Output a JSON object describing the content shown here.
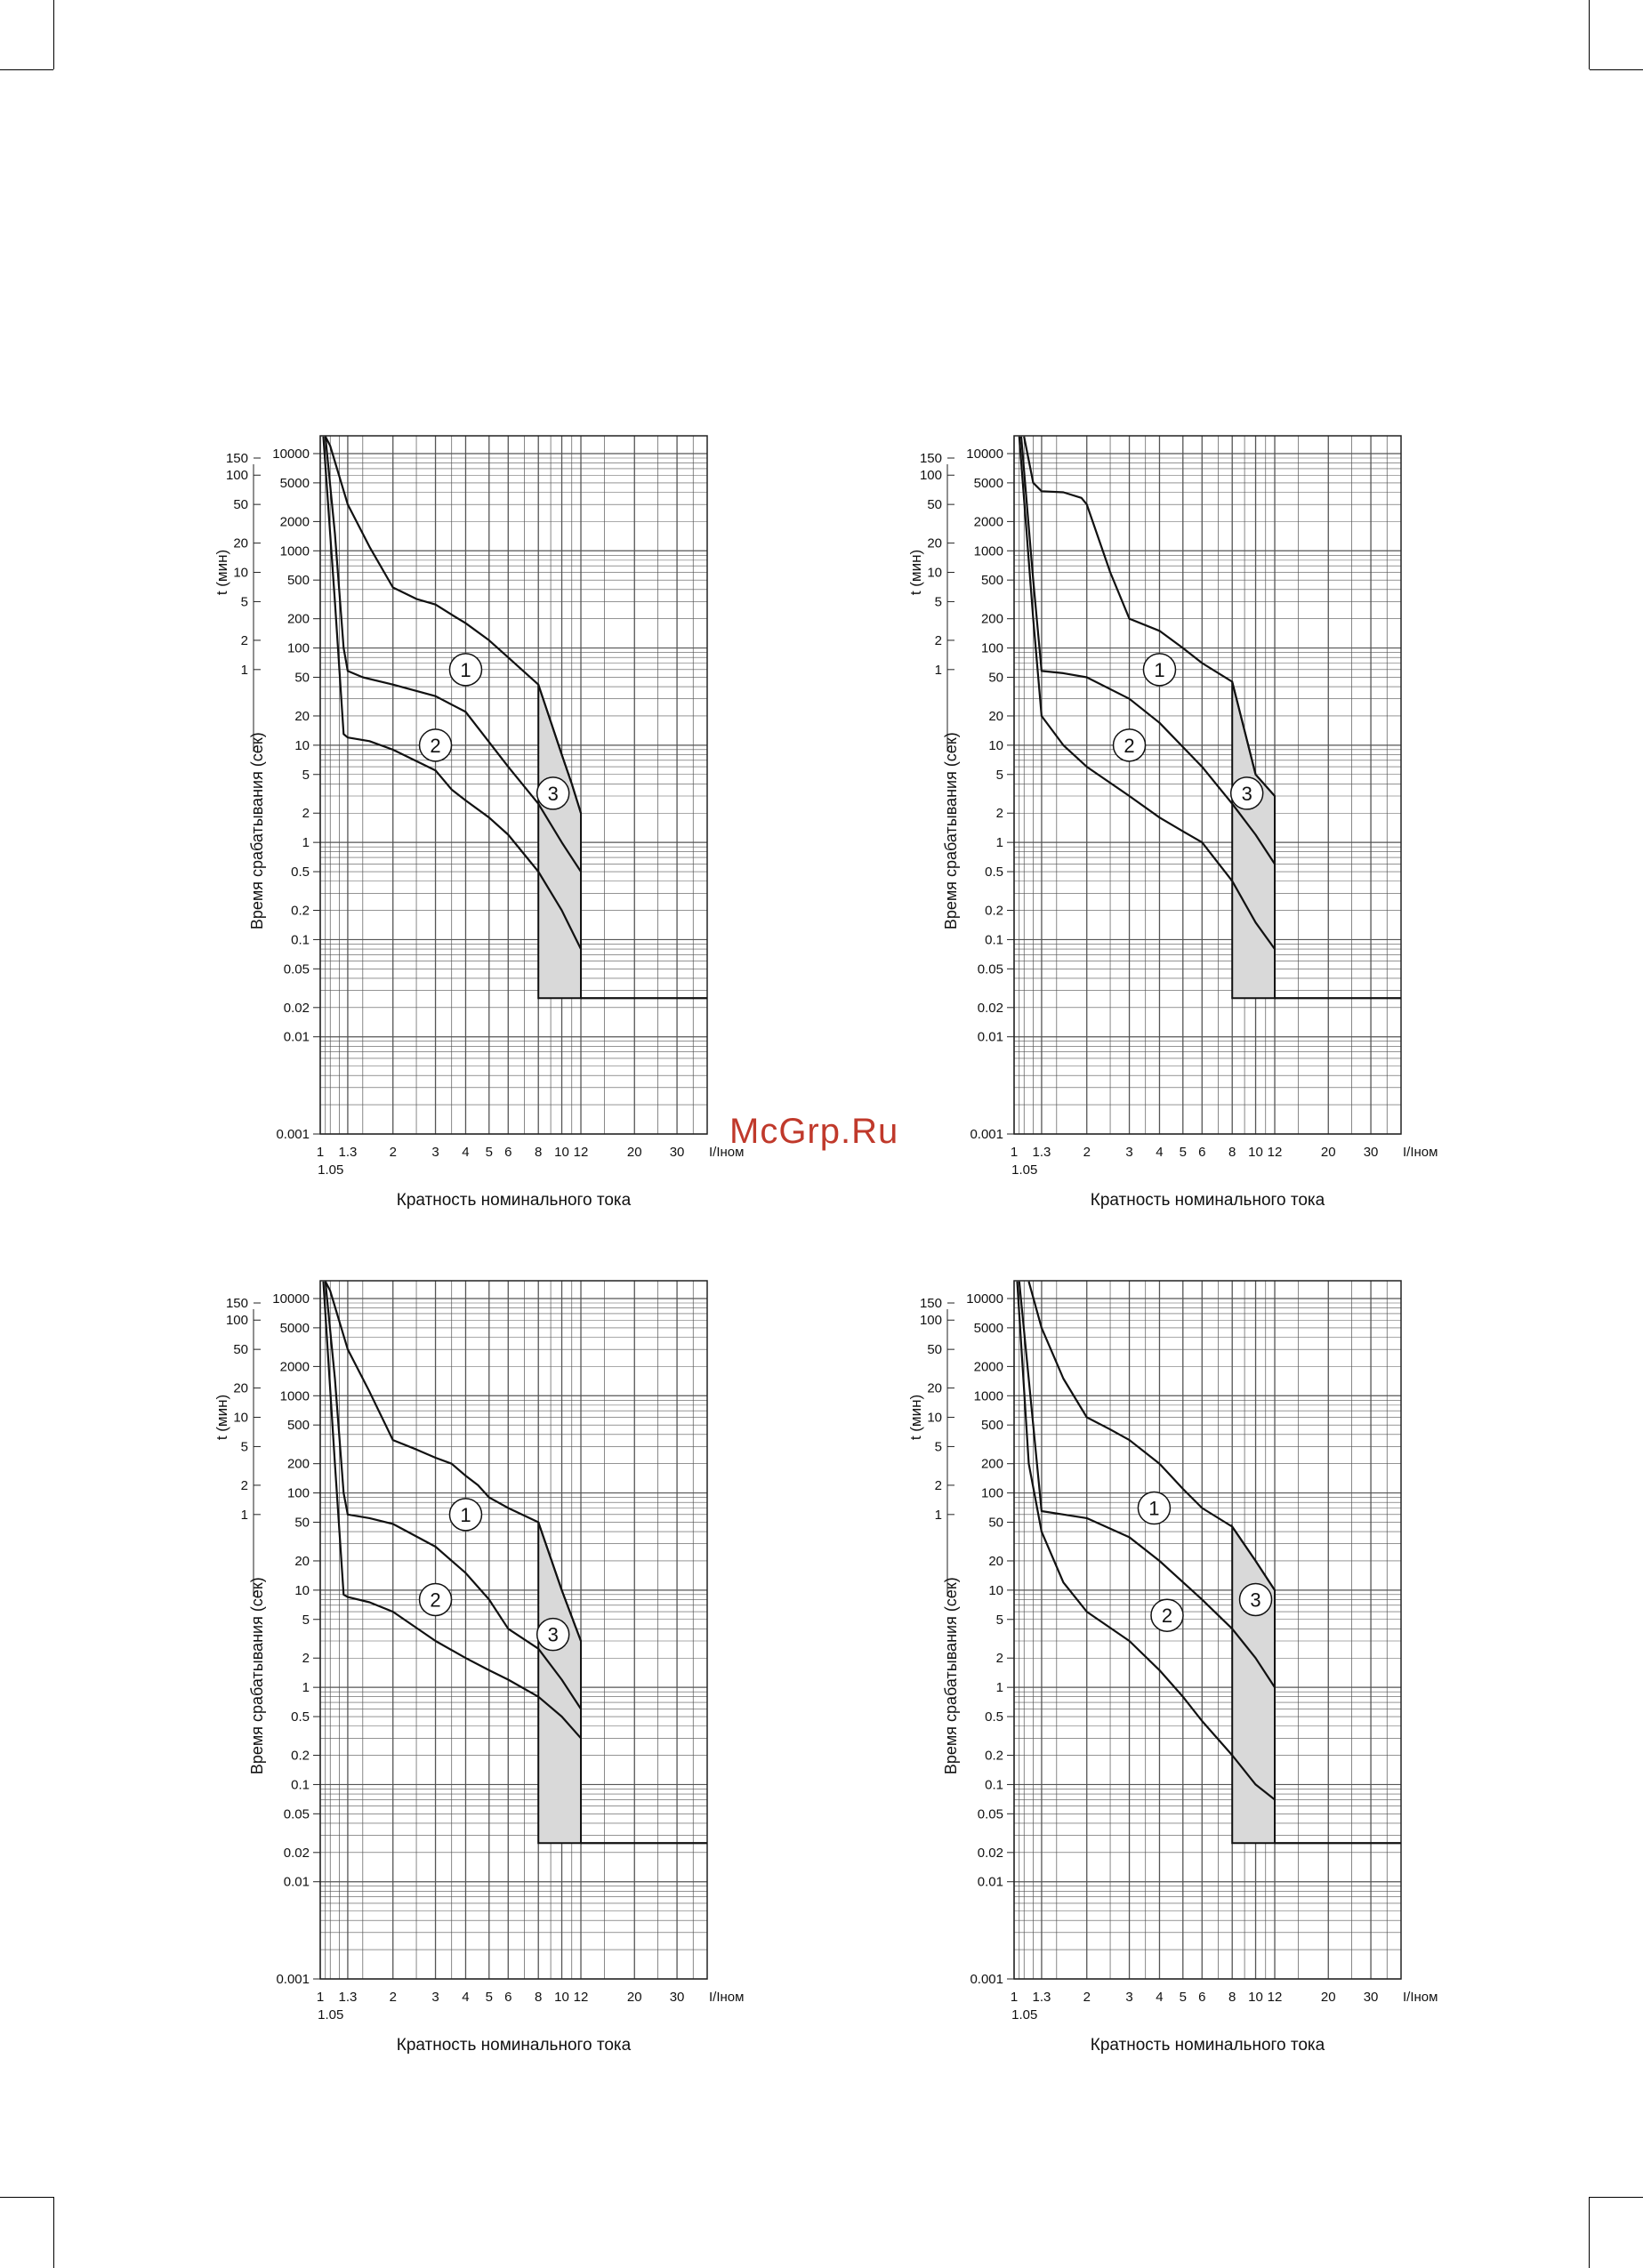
{
  "watermark": "McGrp.Ru",
  "chart_data": [
    {
      "type": "line",
      "axes": {
        "y_label_min": "t (мин)",
        "y_label_sec": "Время срабатывания (сек)",
        "x_label": "Кратность номинального тока",
        "x_unit": "I/Iном",
        "min_ticks": [
          "150",
          "100",
          "50",
          "20",
          "10",
          "5",
          "2",
          "1"
        ],
        "min_values": [
          150,
          100,
          50,
          20,
          10,
          5,
          2,
          1
        ],
        "sec_ticks": [
          "10000",
          "5000",
          "2000",
          "1000",
          "500",
          "200",
          "100",
          "50",
          "20",
          "10",
          "5",
          "2",
          "1",
          "0.5",
          "0.2",
          "0.1",
          "0.05",
          "0.02",
          "0.01",
          "0.001"
        ],
        "sec_values": [
          10000,
          5000,
          2000,
          1000,
          500,
          200,
          100,
          50,
          20,
          10,
          5,
          2,
          1,
          0.5,
          0.2,
          0.1,
          0.05,
          0.02,
          0.01,
          0.001
        ],
        "x_ticks": [
          "1",
          "1.3",
          "2",
          "3",
          "4",
          "5",
          "6",
          "8",
          "10",
          "12",
          "20",
          "30"
        ],
        "x_values": [
          1,
          1.3,
          2,
          3,
          4,
          5,
          6,
          8,
          10,
          12,
          20,
          30
        ],
        "x_extra_tick": "1.05",
        "x_extra_value": 1.05,
        "xlim": [
          1,
          40
        ],
        "ylim_sec": [
          0.001,
          10000
        ],
        "log_x": true,
        "log_y": true
      },
      "curve_labels": [
        "1",
        "2",
        "3"
      ],
      "label_positions": [
        [
          4.0,
          60
        ],
        [
          3.0,
          10
        ],
        [
          9.2,
          3.2
        ]
      ],
      "curve_1": [
        [
          1.05,
          15000
        ],
        [
          1.1,
          12000
        ],
        [
          1.3,
          3000
        ],
        [
          1.6,
          1100
        ],
        [
          2.0,
          420
        ],
        [
          2.5,
          320
        ],
        [
          3.0,
          280
        ],
        [
          3.5,
          220
        ],
        [
          4.0,
          180
        ],
        [
          5.0,
          120
        ],
        [
          6.0,
          80
        ],
        [
          8.0,
          42
        ],
        [
          10.0,
          8
        ],
        [
          11.0,
          4
        ],
        [
          12.0,
          2
        ]
      ],
      "curve_2a": [
        [
          1.05,
          15000
        ],
        [
          1.15,
          1500
        ],
        [
          1.25,
          100
        ],
        [
          1.3,
          58
        ],
        [
          1.5,
          50
        ],
        [
          2.0,
          42
        ],
        [
          3.0,
          32
        ],
        [
          4.0,
          22
        ],
        [
          6.0,
          6
        ],
        [
          8.0,
          2.5
        ],
        [
          10.0,
          1
        ],
        [
          12.0,
          0.5
        ]
      ],
      "curve_2b": [
        [
          1.03,
          15000
        ],
        [
          1.15,
          300
        ],
        [
          1.25,
          13
        ],
        [
          1.3,
          12
        ],
        [
          1.6,
          11
        ],
        [
          2.0,
          9
        ],
        [
          3.0,
          5.5
        ],
        [
          3.5,
          3.5
        ],
        [
          4.0,
          2.7
        ],
        [
          5.0,
          1.8
        ],
        [
          6.0,
          1.2
        ],
        [
          8.0,
          0.5
        ],
        [
          10.0,
          0.2
        ],
        [
          12.0,
          0.08
        ]
      ],
      "band_3": {
        "x_left": 8,
        "x_right": 12,
        "top_left": 42,
        "top_right": 2,
        "bottom": 0.025
      },
      "instant_line": {
        "from_x": 12,
        "to_x": 40,
        "t": 0.025
      }
    },
    {
      "type": "line",
      "axes": {
        "y_label_min": "t (мин)",
        "y_label_sec": "Время срабатывания (сек)",
        "x_label": "Кратность номинального тока",
        "x_unit": "I/Iном",
        "min_ticks": [
          "150",
          "100",
          "50",
          "20",
          "10",
          "5",
          "2",
          "1"
        ],
        "min_values": [
          150,
          100,
          50,
          20,
          10,
          5,
          2,
          1
        ],
        "sec_ticks": [
          "10000",
          "5000",
          "2000",
          "1000",
          "500",
          "200",
          "100",
          "50",
          "20",
          "10",
          "5",
          "2",
          "1",
          "0.5",
          "0.2",
          "0.1",
          "0.05",
          "0.02",
          "0.01",
          "0.001"
        ],
        "sec_values": [
          10000,
          5000,
          2000,
          1000,
          500,
          200,
          100,
          50,
          20,
          10,
          5,
          2,
          1,
          0.5,
          0.2,
          0.1,
          0.05,
          0.02,
          0.01,
          0.001
        ],
        "x_ticks": [
          "1",
          "1.3",
          "2",
          "3",
          "4",
          "5",
          "6",
          "8",
          "10",
          "12",
          "20",
          "30"
        ],
        "x_values": [
          1,
          1.3,
          2,
          3,
          4,
          5,
          6,
          8,
          10,
          12,
          20,
          30
        ],
        "x_extra_tick": "1.05",
        "x_extra_value": 1.05,
        "xlim": [
          1,
          40
        ],
        "ylim_sec": [
          0.001,
          10000
        ],
        "log_x": true,
        "log_y": true
      },
      "curve_labels": [
        "1",
        "2",
        "3"
      ],
      "label_positions": [
        [
          4.0,
          60
        ],
        [
          3.0,
          10
        ],
        [
          9.2,
          3.2
        ]
      ],
      "curve_1": [
        [
          1.1,
          15000
        ],
        [
          1.2,
          5000
        ],
        [
          1.3,
          4100
        ],
        [
          1.6,
          4000
        ],
        [
          1.9,
          3500
        ],
        [
          2.0,
          3000
        ],
        [
          2.5,
          600
        ],
        [
          3.0,
          200
        ],
        [
          4.0,
          150
        ],
        [
          5.0,
          100
        ],
        [
          6.0,
          70
        ],
        [
          8.0,
          45
        ],
        [
          10.0,
          5
        ],
        [
          12.0,
          3
        ]
      ],
      "curve_2a": [
        [
          1.07,
          15000
        ],
        [
          1.2,
          500
        ],
        [
          1.3,
          58
        ],
        [
          1.6,
          55
        ],
        [
          2.0,
          50
        ],
        [
          3.0,
          30
        ],
        [
          4.0,
          17
        ],
        [
          6.0,
          6
        ],
        [
          8.0,
          2.5
        ],
        [
          10.0,
          1.2
        ],
        [
          12.0,
          0.6
        ]
      ],
      "curve_2b": [
        [
          1.05,
          15000
        ],
        [
          1.2,
          200
        ],
        [
          1.3,
          20
        ],
        [
          1.6,
          10
        ],
        [
          2.0,
          6
        ],
        [
          3.0,
          3
        ],
        [
          4.0,
          1.8
        ],
        [
          5.0,
          1.3
        ],
        [
          6.0,
          1.0
        ],
        [
          8.0,
          0.4
        ],
        [
          10.0,
          0.15
        ],
        [
          12.0,
          0.08
        ]
      ],
      "band_3": {
        "x_left": 8,
        "x_right": 12,
        "top_left": 45,
        "top_right": 3,
        "bottom": 0.025
      },
      "instant_line": {
        "from_x": 12,
        "to_x": 40,
        "t": 0.025
      }
    },
    {
      "type": "line",
      "axes": {
        "y_label_min": "t (мин)",
        "y_label_sec": "Время срабатывания (сек)",
        "x_label": "Кратность номинального тока",
        "x_unit": "I/Iном",
        "min_ticks": [
          "150",
          "100",
          "50",
          "20",
          "10",
          "5",
          "2",
          "1"
        ],
        "min_values": [
          150,
          100,
          50,
          20,
          10,
          5,
          2,
          1
        ],
        "sec_ticks": [
          "10000",
          "5000",
          "2000",
          "1000",
          "500",
          "200",
          "100",
          "50",
          "20",
          "10",
          "5",
          "2",
          "1",
          "0.5",
          "0.2",
          "0.1",
          "0.05",
          "0.02",
          "0.01",
          "0.001"
        ],
        "sec_values": [
          10000,
          5000,
          2000,
          1000,
          500,
          200,
          100,
          50,
          20,
          10,
          5,
          2,
          1,
          0.5,
          0.2,
          0.1,
          0.05,
          0.02,
          0.01,
          0.001
        ],
        "x_ticks": [
          "1",
          "1.3",
          "2",
          "3",
          "4",
          "5",
          "6",
          "8",
          "10",
          "12",
          "20",
          "30"
        ],
        "x_values": [
          1,
          1.3,
          2,
          3,
          4,
          5,
          6,
          8,
          10,
          12,
          20,
          30
        ],
        "x_extra_tick": "1.05",
        "x_extra_value": 1.05,
        "xlim": [
          1,
          40
        ],
        "ylim_sec": [
          0.001,
          10000
        ],
        "log_x": true,
        "log_y": true
      },
      "curve_labels": [
        "1",
        "2",
        "3"
      ],
      "label_positions": [
        [
          4.0,
          60
        ],
        [
          3.0,
          8
        ],
        [
          9.2,
          3.5
        ]
      ],
      "curve_1": [
        [
          1.05,
          15000
        ],
        [
          1.1,
          12000
        ],
        [
          1.3,
          3000
        ],
        [
          1.6,
          1100
        ],
        [
          2.0,
          350
        ],
        [
          2.5,
          280
        ],
        [
          3.0,
          230
        ],
        [
          3.5,
          200
        ],
        [
          4.0,
          150
        ],
        [
          4.5,
          120
        ],
        [
          5.0,
          90
        ],
        [
          6.0,
          70
        ],
        [
          8.0,
          50
        ],
        [
          10.0,
          10
        ],
        [
          12.0,
          3
        ]
      ],
      "curve_2a": [
        [
          1.05,
          15000
        ],
        [
          1.15,
          1500
        ],
        [
          1.25,
          100
        ],
        [
          1.3,
          60
        ],
        [
          1.6,
          55
        ],
        [
          2.0,
          48
        ],
        [
          3.0,
          28
        ],
        [
          4.0,
          15
        ],
        [
          5.0,
          8
        ],
        [
          6.0,
          4
        ],
        [
          8.0,
          2.5
        ],
        [
          10.0,
          1.2
        ],
        [
          12.0,
          0.6
        ]
      ],
      "curve_2b": [
        [
          1.03,
          15000
        ],
        [
          1.15,
          200
        ],
        [
          1.25,
          9
        ],
        [
          1.3,
          8.5
        ],
        [
          1.6,
          7.5
        ],
        [
          2.0,
          6
        ],
        [
          3.0,
          3
        ],
        [
          4.0,
          2
        ],
        [
          5.0,
          1.5
        ],
        [
          6.0,
          1.2
        ],
        [
          8.0,
          0.8
        ],
        [
          10.0,
          0.5
        ],
        [
          12.0,
          0.3
        ]
      ],
      "band_3": {
        "x_left": 8,
        "x_right": 12,
        "top_left": 50,
        "top_right": 3,
        "bottom": 0.025
      },
      "instant_line": {
        "from_x": 12,
        "to_x": 40,
        "t": 0.025
      }
    },
    {
      "type": "line",
      "axes": {
        "y_label_min": "t (мин)",
        "y_label_sec": "Время срабатывания (сек)",
        "x_label": "Кратность номинального тока",
        "x_unit": "I/Iном",
        "min_ticks": [
          "150",
          "100",
          "50",
          "20",
          "10",
          "5",
          "2",
          "1"
        ],
        "min_values": [
          150,
          100,
          50,
          20,
          10,
          5,
          2,
          1
        ],
        "sec_ticks": [
          "10000",
          "5000",
          "2000",
          "1000",
          "500",
          "200",
          "100",
          "50",
          "20",
          "10",
          "5",
          "2",
          "1",
          "0.5",
          "0.2",
          "0.1",
          "0.05",
          "0.02",
          "0.01",
          "0.001"
        ],
        "sec_values": [
          10000,
          5000,
          2000,
          1000,
          500,
          200,
          100,
          50,
          20,
          10,
          5,
          2,
          1,
          0.5,
          0.2,
          0.1,
          0.05,
          0.02,
          0.01,
          0.001
        ],
        "x_ticks": [
          "1",
          "1.3",
          "2",
          "3",
          "4",
          "5",
          "6",
          "8",
          "10",
          "12",
          "20",
          "30"
        ],
        "x_values": [
          1,
          1.3,
          2,
          3,
          4,
          5,
          6,
          8,
          10,
          12,
          20,
          30
        ],
        "x_extra_tick": "1.05",
        "x_extra_value": 1.05,
        "xlim": [
          1,
          40
        ],
        "ylim_sec": [
          0.001,
          10000
        ],
        "log_x": true,
        "log_y": true
      },
      "curve_labels": [
        "1",
        "2",
        "3"
      ],
      "label_positions": [
        [
          3.8,
          70
        ],
        [
          4.3,
          5.5
        ],
        [
          10.0,
          8
        ]
      ],
      "curve_1": [
        [
          1.15,
          15000
        ],
        [
          1.3,
          5000
        ],
        [
          1.6,
          1500
        ],
        [
          2.0,
          600
        ],
        [
          2.5,
          450
        ],
        [
          3.0,
          350
        ],
        [
          4.0,
          200
        ],
        [
          5.0,
          110
        ],
        [
          6.0,
          70
        ],
        [
          8.0,
          45
        ],
        [
          10.0,
          20
        ],
        [
          12.0,
          10
        ]
      ],
      "curve_2a": [
        [
          1.05,
          15000
        ],
        [
          1.2,
          500
        ],
        [
          1.3,
          65
        ],
        [
          1.6,
          60
        ],
        [
          2.0,
          55
        ],
        [
          3.0,
          35
        ],
        [
          4.0,
          20
        ],
        [
          6.0,
          8
        ],
        [
          8.0,
          4
        ],
        [
          10.0,
          2
        ],
        [
          12.0,
          1
        ]
      ],
      "curve_2b": [
        [
          1.03,
          15000
        ],
        [
          1.15,
          200
        ],
        [
          1.3,
          40
        ],
        [
          1.6,
          12
        ],
        [
          2.0,
          6
        ],
        [
          3.0,
          3
        ],
        [
          4.0,
          1.5
        ],
        [
          5.0,
          0.8
        ],
        [
          6.0,
          0.45
        ],
        [
          8.0,
          0.2
        ],
        [
          10.0,
          0.1
        ],
        [
          12.0,
          0.07
        ]
      ],
      "band_3": {
        "x_left": 8,
        "x_right": 12,
        "top_left": 45,
        "top_right": 10,
        "bottom": 0.025
      },
      "instant_line": {
        "from_x": 12,
        "to_x": 40,
        "t": 0.025
      }
    }
  ]
}
